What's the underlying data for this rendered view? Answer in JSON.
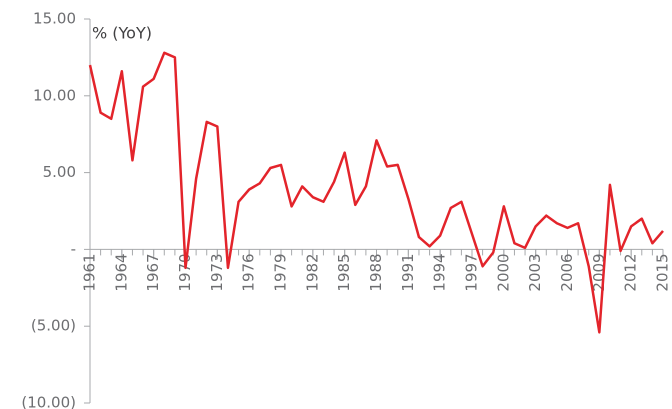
{
  "chart_data": {
    "type": "line",
    "annotation": "% (YoY)",
    "x": [
      1961,
      1962,
      1963,
      1964,
      1965,
      1966,
      1967,
      1968,
      1969,
      1970,
      1971,
      1972,
      1973,
      1974,
      1975,
      1976,
      1977,
      1978,
      1979,
      1980,
      1981,
      1982,
      1983,
      1984,
      1985,
      1986,
      1987,
      1988,
      1989,
      1990,
      1991,
      1992,
      1993,
      1994,
      1995,
      1996,
      1997,
      1998,
      1999,
      2000,
      2001,
      2002,
      2003,
      2004,
      2005,
      2006,
      2007,
      2008,
      2009,
      2010,
      2011,
      2012,
      2013,
      2014,
      2015
    ],
    "series": [
      {
        "name": "% (YoY)",
        "color": "#e3242b",
        "values": [
          12.0,
          8.9,
          8.5,
          11.6,
          5.8,
          10.6,
          11.1,
          12.8,
          12.5,
          -1.2,
          4.6,
          8.3,
          8.0,
          -1.2,
          3.1,
          3.9,
          4.3,
          5.3,
          5.5,
          2.8,
          4.1,
          3.4,
          3.1,
          4.4,
          6.3,
          2.9,
          4.1,
          7.1,
          5.4,
          5.5,
          3.3,
          0.8,
          0.2,
          0.9,
          2.7,
          3.1,
          1.0,
          -1.1,
          -0.2,
          2.8,
          0.4,
          0.1,
          1.5,
          2.2,
          1.7,
          1.4,
          1.7,
          -1.1,
          -5.4,
          4.2,
          -0.1,
          1.5,
          2.0,
          0.4,
          1.2
        ]
      }
    ],
    "xlim": [
      1961,
      2015
    ],
    "xticks": [
      1961,
      1964,
      1967,
      1970,
      1973,
      1976,
      1979,
      1982,
      1985,
      1988,
      1991,
      1994,
      1997,
      2000,
      2003,
      2006,
      2009,
      2012,
      2015
    ],
    "ylim": [
      -10,
      15
    ],
    "yticks": [
      {
        "value": -10,
        "label": "(10.00)"
      },
      {
        "value": -5,
        "label": "(5.00)"
      },
      {
        "value": 0,
        "label": "-"
      },
      {
        "value": 5,
        "label": "5.00"
      },
      {
        "value": 10,
        "label": "10.00"
      },
      {
        "value": 15,
        "label": "15.00"
      }
    ],
    "grid": false
  }
}
